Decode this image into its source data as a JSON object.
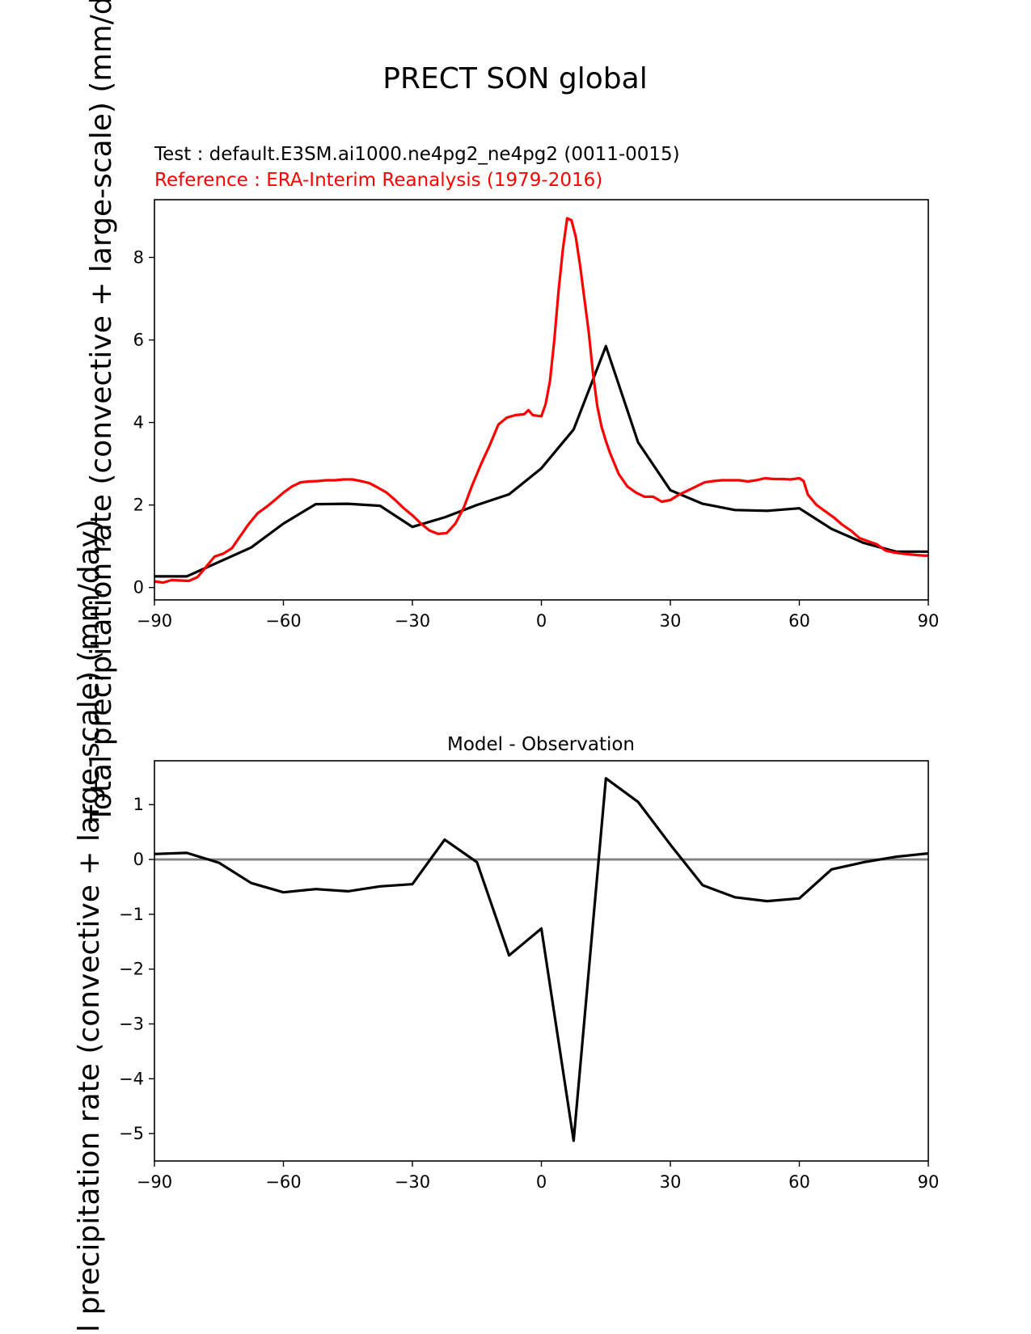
{
  "suptitle": "PRECT SON global",
  "colors": {
    "test": "#000000",
    "reference": "#ff0000",
    "zero_line": "#808080",
    "axis": "#000000"
  },
  "chart_data": [
    {
      "type": "line",
      "test_label": "Test : default.E3SM.ai1000.ne4pg2_ne4pg2 (0011-0015)",
      "reference_label": "Reference : ERA-Interim Reanalysis (1979-2016)",
      "ylabel": "Total precipitation rate (convective + large-scale) (mm/day)",
      "xlim": [
        -90,
        90
      ],
      "ylim": [
        -0.3,
        9.4
      ],
      "xticks": [
        -90,
        -60,
        -30,
        0,
        30,
        60,
        90
      ],
      "xtick_labels": [
        "−90",
        "−60",
        "−30",
        "0",
        "30",
        "60",
        "90"
      ],
      "yticks": [
        0,
        2,
        4,
        6,
        8
      ],
      "ytick_labels": [
        "0",
        "2",
        "4",
        "6",
        "8"
      ],
      "series": [
        {
          "name": "Test",
          "x": [
            -90,
            -82.5,
            -75,
            -67.5,
            -60,
            -52.5,
            -45,
            -37.5,
            -30,
            -22.5,
            -15,
            -7.5,
            0,
            7.5,
            15,
            22.5,
            30,
            37.5,
            45,
            52.5,
            60,
            67.5,
            75,
            82.5,
            90
          ],
          "values": [
            0.27,
            0.27,
            0.62,
            0.97,
            1.55,
            2.02,
            2.03,
            1.98,
            1.47,
            1.7,
            2.0,
            2.26,
            2.89,
            3.83,
            5.85,
            3.52,
            2.36,
            2.03,
            1.88,
            1.86,
            1.92,
            1.42,
            1.08,
            0.87,
            0.87
          ]
        },
        {
          "name": "Reference",
          "x": [
            -90,
            -88,
            -86,
            -84,
            -82,
            -80,
            -78,
            -76,
            -74,
            -72,
            -70,
            -68,
            -66,
            -64,
            -62,
            -60,
            -58,
            -56,
            -54,
            -52,
            -50,
            -48,
            -46,
            -44,
            -42,
            -40,
            -38,
            -36,
            -34,
            -32,
            -30,
            -28,
            -26,
            -24,
            -22,
            -20,
            -18,
            -16,
            -14,
            -12,
            -10,
            -8,
            -6,
            -4,
            -3,
            -2,
            0,
            1,
            2,
            3,
            4,
            5,
            6,
            7,
            8,
            9,
            10,
            11,
            12,
            13,
            14,
            15,
            16,
            18,
            20,
            22,
            24,
            26,
            28,
            30,
            32,
            34,
            36,
            38,
            40,
            42,
            44,
            46,
            48,
            50,
            52,
            54,
            56,
            58,
            60,
            61,
            62,
            64,
            66,
            68,
            70,
            72,
            74,
            76,
            78,
            80,
            82,
            84,
            86,
            88,
            90
          ],
          "values": [
            0.15,
            0.12,
            0.18,
            0.17,
            0.16,
            0.25,
            0.5,
            0.75,
            0.82,
            0.95,
            1.25,
            1.55,
            1.8,
            1.95,
            2.12,
            2.3,
            2.45,
            2.55,
            2.57,
            2.58,
            2.6,
            2.6,
            2.62,
            2.62,
            2.58,
            2.53,
            2.42,
            2.3,
            2.12,
            1.92,
            1.75,
            1.55,
            1.38,
            1.3,
            1.32,
            1.55,
            1.95,
            2.5,
            3.0,
            3.45,
            3.95,
            4.12,
            4.18,
            4.2,
            4.3,
            4.18,
            4.15,
            4.45,
            5.0,
            6.0,
            7.2,
            8.2,
            8.95,
            8.9,
            8.5,
            7.8,
            7.0,
            6.2,
            5.2,
            4.4,
            3.9,
            3.55,
            3.25,
            2.75,
            2.45,
            2.3,
            2.2,
            2.2,
            2.08,
            2.12,
            2.25,
            2.35,
            2.45,
            2.55,
            2.58,
            2.6,
            2.6,
            2.6,
            2.57,
            2.6,
            2.65,
            2.63,
            2.63,
            2.62,
            2.65,
            2.58,
            2.25,
            2.0,
            1.85,
            1.7,
            1.52,
            1.38,
            1.2,
            1.12,
            1.05,
            0.9,
            0.85,
            0.82,
            0.8,
            0.78,
            0.77
          ]
        }
      ]
    },
    {
      "type": "line",
      "title": "Model - Observation",
      "ylabel": "Total precipitation rate (convective + large-scale) (mm/day)",
      "xlim": [
        -90,
        90
      ],
      "ylim": [
        -5.5,
        1.8
      ],
      "xticks": [
        -90,
        -60,
        -30,
        0,
        30,
        60,
        90
      ],
      "xtick_labels": [
        "−90",
        "−60",
        "−30",
        "0",
        "30",
        "60",
        "90"
      ],
      "yticks": [
        1,
        0,
        -1,
        -2,
        -3,
        -4,
        -5
      ],
      "ytick_labels": [
        "1",
        "0",
        "−1",
        "−2",
        "−3",
        "−4",
        "−5"
      ],
      "zero_line": 0,
      "series": [
        {
          "name": "Model - Observation",
          "x": [
            -90,
            -82.5,
            -75,
            -67.5,
            -60,
            -52.5,
            -45,
            -37.5,
            -30,
            -22.5,
            -15,
            -7.5,
            0,
            7.5,
            15,
            22.5,
            30,
            37.5,
            45,
            52.5,
            60,
            67.5,
            75,
            82.5,
            90
          ],
          "values": [
            0.1,
            0.12,
            -0.06,
            -0.43,
            -0.6,
            -0.54,
            -0.58,
            -0.49,
            -0.45,
            0.36,
            -0.05,
            -1.75,
            -1.26,
            -5.13,
            1.48,
            1.05,
            0.27,
            -0.47,
            -0.69,
            -0.76,
            -0.71,
            -0.18,
            -0.05,
            0.05,
            0.11
          ]
        }
      ]
    }
  ]
}
